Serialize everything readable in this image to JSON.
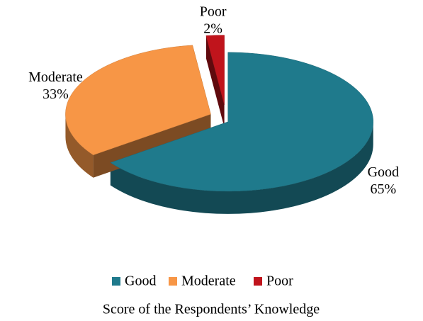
{
  "chart_data": {
    "type": "pie",
    "title": "Score of the Respondents’ Knowledge",
    "categories": [
      "Good",
      "Moderate",
      "Poor"
    ],
    "values": [
      65,
      33,
      2
    ],
    "value_labels": [
      "65%",
      "33%",
      "2%"
    ],
    "colors": [
      "#1f7a8c",
      "#f79646",
      "#c0141c"
    ],
    "legend": "bottom"
  }
}
